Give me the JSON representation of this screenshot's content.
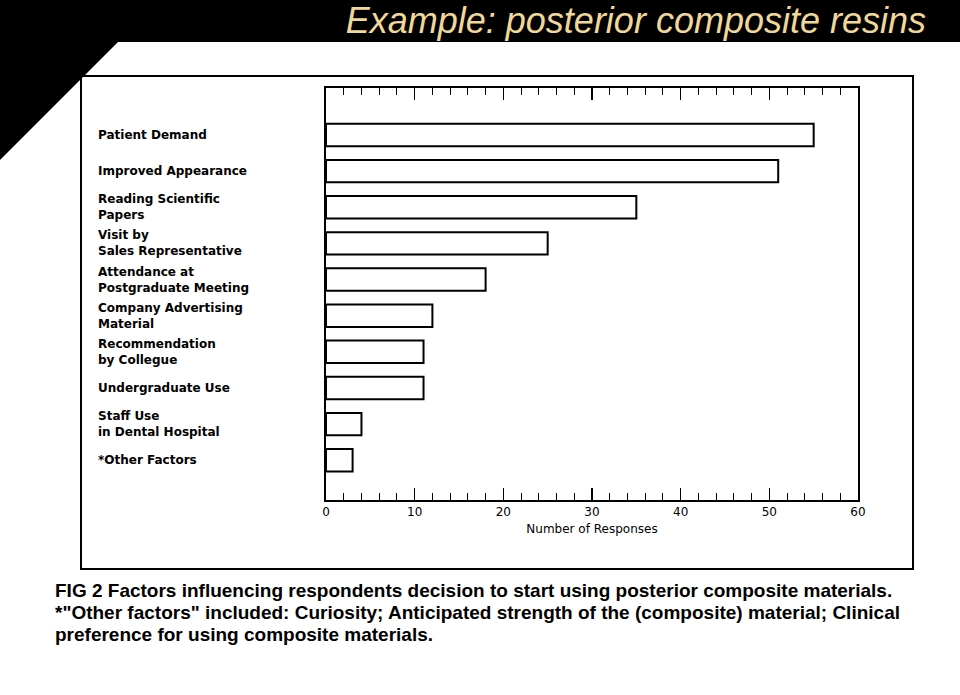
{
  "chart_data": {
    "type": "bar",
    "orientation": "horizontal",
    "title": "Example: posterior composite resins",
    "categories": [
      "Patient Demand",
      "Improved Appearance",
      "Reading Scientific\nPapers",
      "Visit by\nSales Representative",
      "Attendance at\nPostgraduate Meeting",
      "Company Advertising\nMaterial",
      "Recommendation\nby Collegue",
      "Undergraduate Use",
      "Staff Use\nin Dental Hospital",
      "*Other Factors"
    ],
    "values": [
      55,
      51,
      35,
      25,
      18,
      12,
      11,
      11,
      4,
      3
    ],
    "color": "#ffffff",
    "x_label": "Number of Responses",
    "xlim": [
      0,
      60
    ],
    "xticks": [
      0,
      10,
      20,
      30,
      40,
      50,
      60
    ],
    "grid": false,
    "caption": "FIG 2 Factors influencing respondents decision to start using posterior composite materials.",
    "footnote": "*\"Other factors\" included: Curiosity; Anticipated strength of the (composite) material; Clinical preference for using composite materials."
  }
}
